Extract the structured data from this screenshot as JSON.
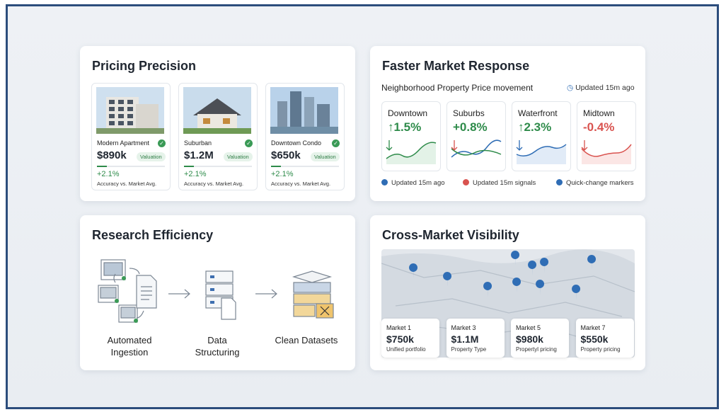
{
  "pricing": {
    "title": "Pricing Precision",
    "cards": [
      {
        "name": "Modern Apartment",
        "price": "$890k",
        "badge": "Valuation",
        "change": "+2.1%",
        "note": "Accuracy vs. Market Avg."
      },
      {
        "name": "Suburban",
        "price": "$1.2M",
        "badge": "Valuation",
        "change": "+2.1%",
        "note": "Accuracy vs. Market Avg."
      },
      {
        "name": "Downtown Condo",
        "price": "$650k",
        "badge": "Valuation",
        "change": "+2.1%",
        "note": "Accuracy vs. Market Avg."
      }
    ]
  },
  "market": {
    "title": "Faster Market Response",
    "subtitle": "Neighborhood Property Price movement",
    "updated": "Updated 15m ago",
    "cards": [
      {
        "name": "Downtown",
        "change": "↑1.5%"
      },
      {
        "name": "Suburbs",
        "change": "+0.8%"
      },
      {
        "name": "Waterfront",
        "change": "↑2.3%"
      },
      {
        "name": "Midtown",
        "change": "-0.4%"
      }
    ],
    "legend": [
      "Updated 15m ago",
      "Updated 15m signals",
      "Quick-change markers"
    ]
  },
  "research": {
    "title": "Research Efficiency",
    "steps": [
      "Automated Ingestion",
      "Data Structuring",
      "Clean Datasets"
    ]
  },
  "cross": {
    "title": "Cross-Market Visibility",
    "markets": [
      {
        "name": "Market 1",
        "price": "$750k",
        "note": "Unified portfolio"
      },
      {
        "name": "Market 3",
        "price": "$1.1M",
        "note": "Property Type"
      },
      {
        "name": "Market 5",
        "price": "$980k",
        "note": "Propertyl pricing"
      },
      {
        "name": "Market 7",
        "price": "$550k",
        "note": "Property pricing"
      }
    ]
  }
}
